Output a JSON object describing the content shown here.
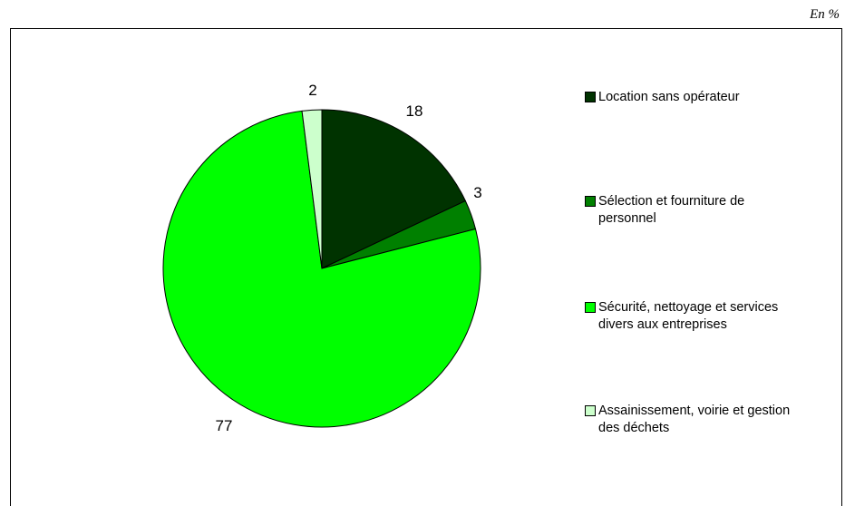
{
  "unit_note": "En %",
  "chart_data": {
    "type": "pie",
    "labels": [
      "Location sans opérateur",
      "Sélection et fourniture de personnel",
      "Sécurité, nettoyage et services divers aux entreprises",
      "Assainissement, voirie et gestion des déchets"
    ],
    "values": [
      18,
      3,
      77,
      2
    ],
    "data_labels": [
      "18",
      "3",
      "77",
      "2"
    ],
    "colors": [
      "#003300",
      "#008000",
      "#00ff00",
      "#ccffcc"
    ],
    "start": "12 o'clock",
    "direction": "clockwise",
    "legend_position": "right"
  },
  "legend": [
    {
      "line1": "Location sans opérateur",
      "line2": ""
    },
    {
      "line1": "Sélection et fourniture de",
      "line2": "personnel"
    },
    {
      "line1": "Sécurité, nettoyage et services",
      "line2": "divers aux entreprises"
    },
    {
      "line1": "Assainissement, voirie et gestion",
      "line2": "des déchets"
    }
  ]
}
